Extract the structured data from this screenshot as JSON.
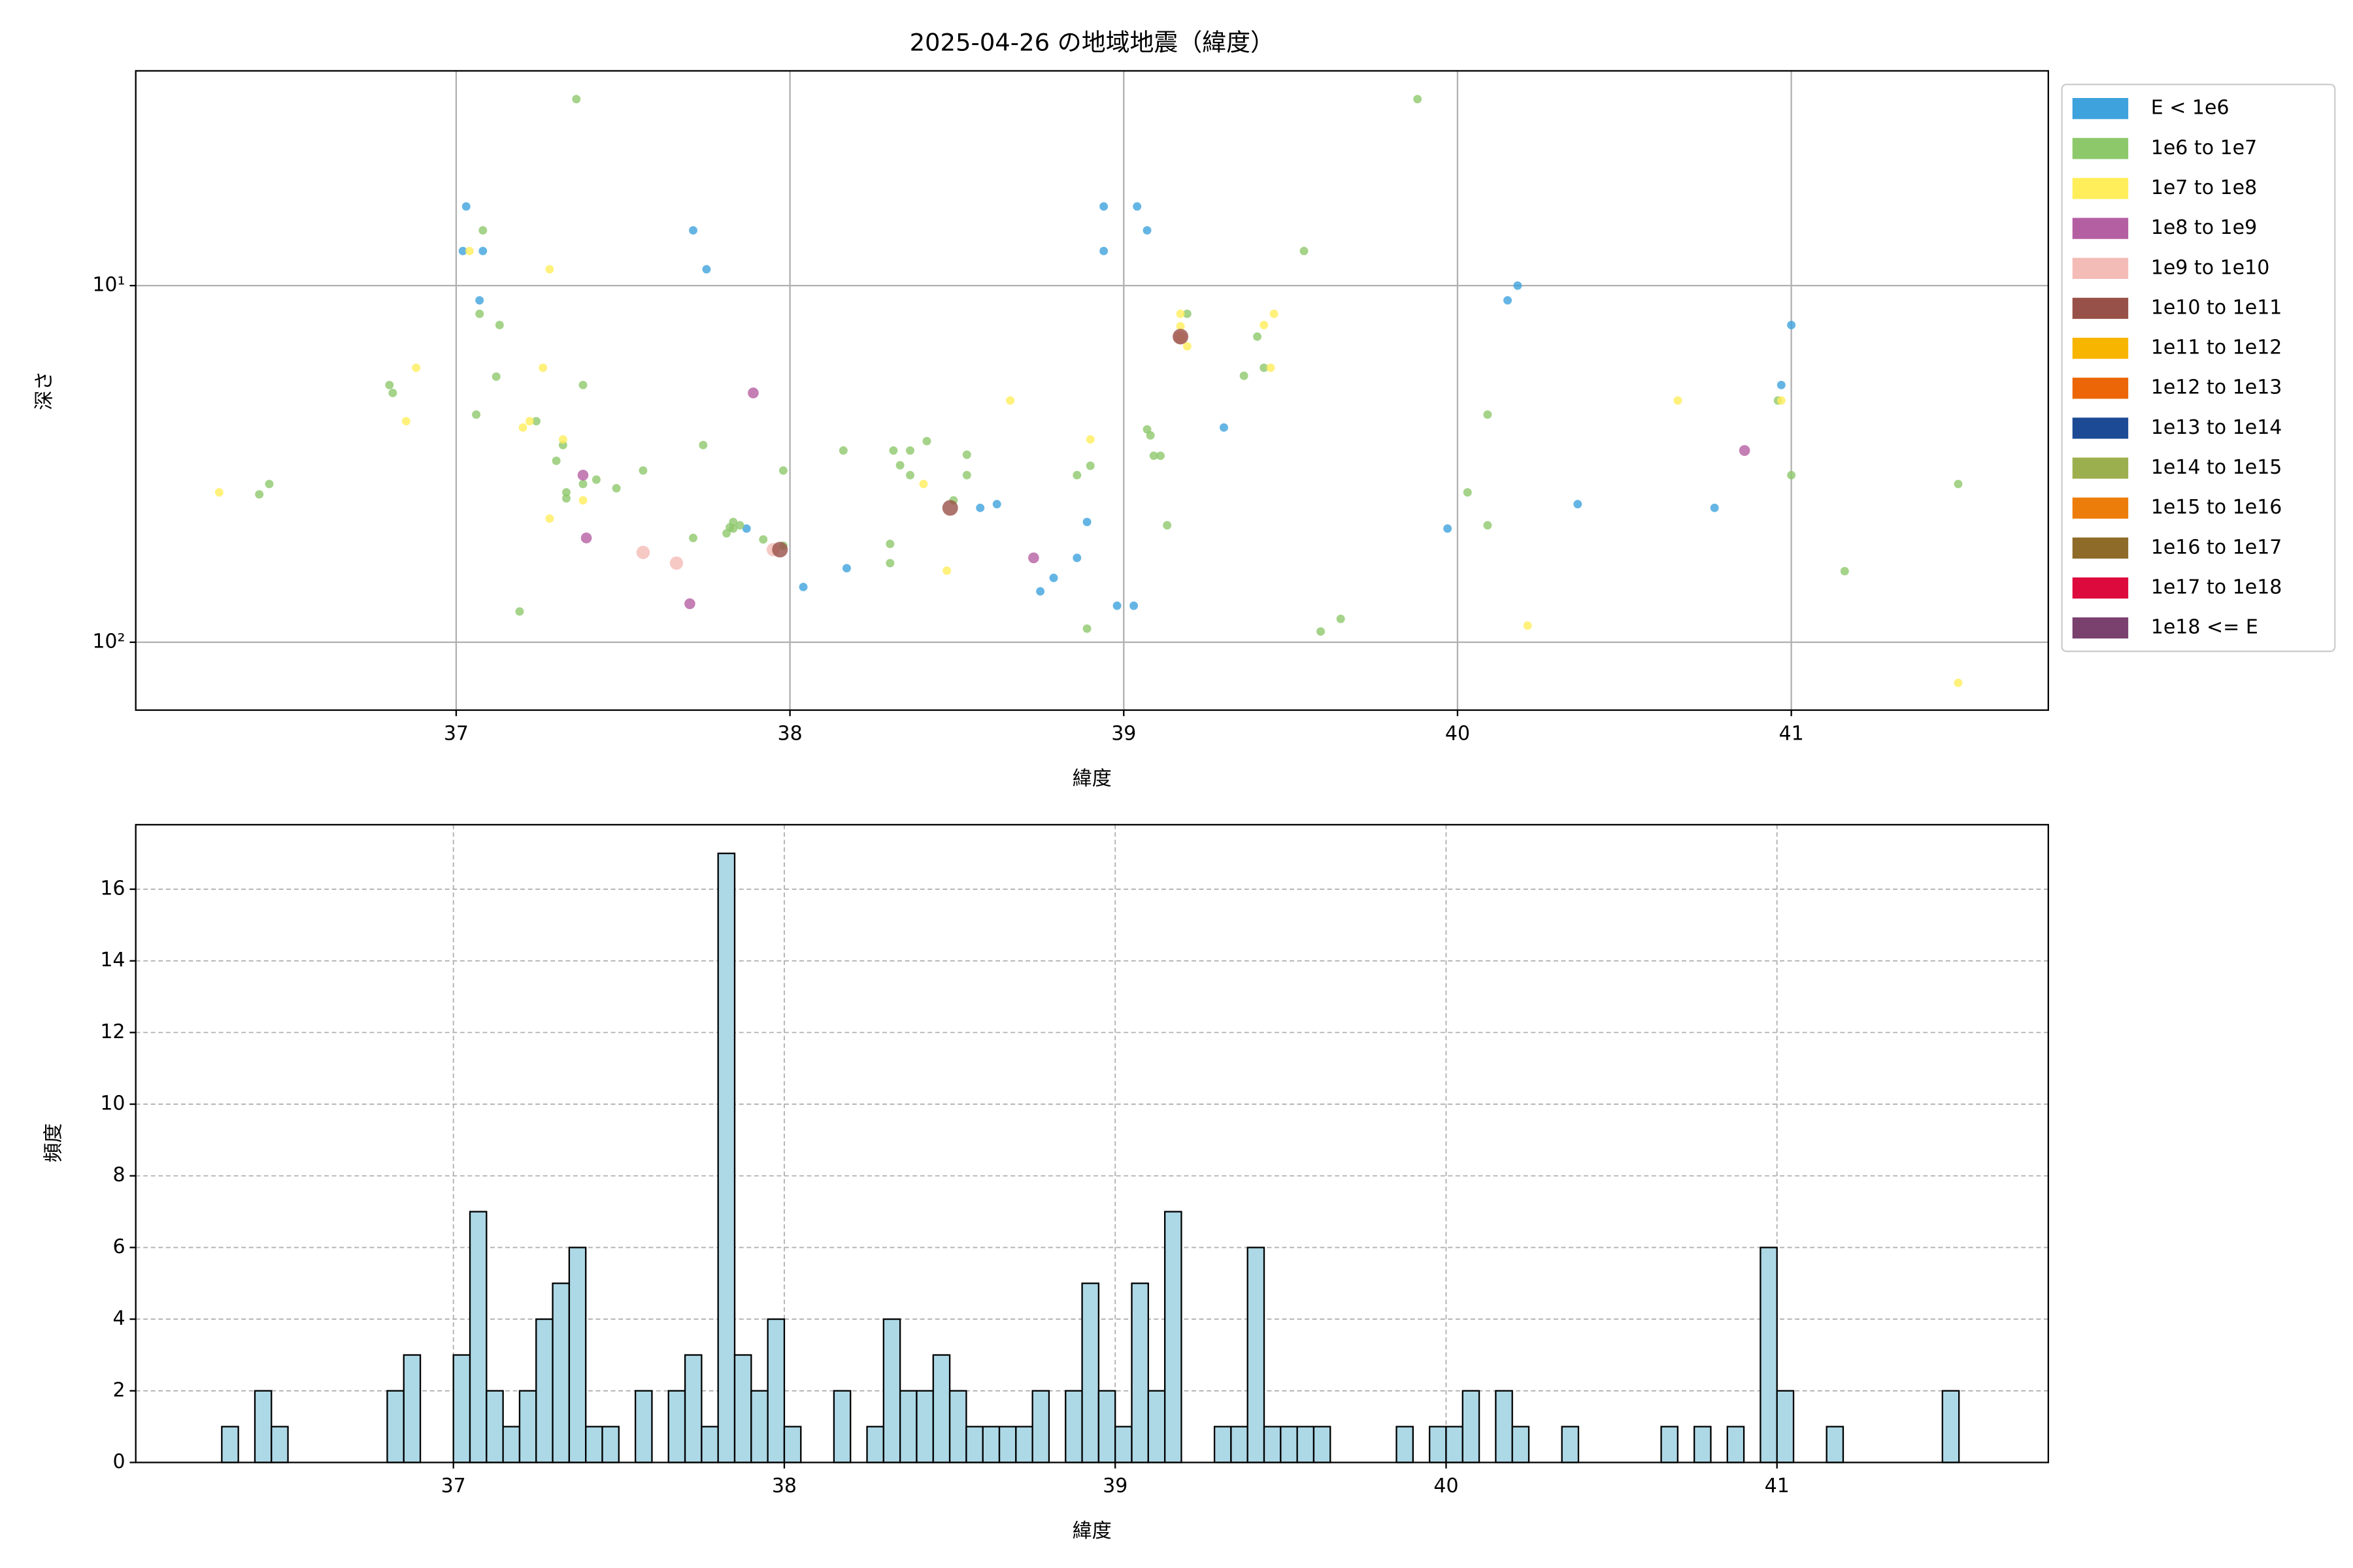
{
  "chart_data": [
    {
      "type": "scatter",
      "title": "2025-04-26 の地域地震（緯度）",
      "x_label": "緯度",
      "y_label": "深さ",
      "xlim": [
        36.04,
        41.77
      ],
      "xticks": [
        37,
        38,
        39,
        40,
        41
      ],
      "ylim": [
        2.5,
        155
      ],
      "y_scale": "log",
      "y_inverted": true,
      "yticks": [
        {
          "value": 10,
          "label": "10¹"
        },
        {
          "value": 100,
          "label": "10²"
        }
      ],
      "grid": true,
      "legend": "outside right",
      "series": [
        {
          "name": "E < 1e6",
          "color": "#3ea2dd",
          "x": [
            37.03,
            37.02,
            37.08,
            37.07,
            37.71,
            37.75,
            37.87,
            38.04,
            38.17,
            38.57,
            38.62,
            38.75,
            38.79,
            38.86,
            38.89,
            38.94,
            38.94,
            38.98,
            39.03,
            39.04,
            39.07,
            39.3,
            39.97,
            40.15,
            40.18,
            40.36,
            40.77,
            40.97,
            41.0
          ],
          "values": [
            6.0,
            8.0,
            8.0,
            11.0,
            7.0,
            9.0,
            48,
            70,
            62,
            42,
            41,
            72,
            66,
            58,
            46,
            6.0,
            8.0,
            79,
            79,
            6.0,
            7.0,
            25,
            48,
            11.0,
            10,
            41,
            42,
            19,
            12.9
          ]
        },
        {
          "name": "1e6 to 1e7",
          "color": "#8dc86b",
          "x": [
            37.36,
            39.88,
            37.08,
            37.07,
            37.13,
            36.8,
            36.81,
            37.06,
            37.12,
            37.24,
            37.38,
            37.32,
            37.3,
            37.42,
            37.38,
            37.33,
            37.33,
            37.48,
            37.56,
            37.74,
            37.71,
            37.19,
            36.41,
            36.44,
            37.82,
            37.83,
            37.83,
            37.85,
            37.81,
            37.92,
            37.98,
            37.98,
            38.16,
            38.31,
            38.36,
            38.41,
            38.33,
            38.36,
            38.53,
            38.53,
            38.49,
            38.3,
            38.3,
            38.89,
            38.86,
            38.9,
            39.07,
            39.08,
            39.09,
            39.11,
            39.13,
            39.19,
            39.36,
            39.4,
            39.42,
            39.54,
            39.59,
            39.65,
            40.03,
            40.09,
            40.09,
            40.96,
            41.0,
            41.16,
            41.5
          ],
          "values": [
            3.0,
            3.0,
            7.0,
            12,
            12.9,
            19,
            20,
            23,
            18,
            24,
            19,
            28,
            31,
            35,
            36,
            38,
            39.5,
            37,
            33,
            28,
            51,
            82,
            38.5,
            36,
            47.6,
            48,
            46,
            47,
            49.5,
            51.5,
            53.6,
            33,
            29,
            29,
            29,
            27.3,
            31.9,
            34,
            29.8,
            34,
            40,
            53,
            60,
            91.6,
            34,
            32,
            25.3,
            26.3,
            30,
            30,
            47,
            12,
            17.9,
            13.9,
            17,
            8.0,
            93.3,
            86,
            38,
            23,
            47,
            21,
            34,
            63.2,
            36
          ]
        },
        {
          "name": "1e7 to 1e8",
          "color": "#ffee5a",
          "x": [
            36.29,
            36.85,
            36.88,
            37.04,
            37.28,
            37.26,
            37.2,
            37.22,
            37.32,
            37.38,
            37.28,
            38.4,
            38.47,
            38.66,
            38.9,
            39.17,
            39.17,
            39.19,
            39.42,
            39.44,
            39.45,
            39.17,
            40.21,
            40.66,
            40.97,
            41.5
          ],
          "values": [
            38,
            24,
            17,
            8,
            9,
            17,
            25,
            24,
            27,
            40,
            45,
            36,
            63,
            21,
            27,
            12,
            13,
            14.8,
            12.9,
            17,
            12,
            14,
            89.8,
            21,
            21,
            130
          ]
        },
        {
          "name": "1e8 to 1e9",
          "color": "#b55fa3",
          "x": [
            37.89,
            37.38,
            37.39,
            37.7,
            38.73,
            40.86
          ],
          "values": [
            20,
            34,
            51,
            78,
            58,
            29
          ]
        },
        {
          "name": "1e9 to 1e10",
          "color": "#f4bcb7",
          "x": [
            37.56,
            37.66,
            37.95,
            39.17
          ],
          "values": [
            56,
            60,
            55,
            14
          ]
        },
        {
          "name": "1e10 to 1e11",
          "color": "#985148",
          "x": [
            38.48,
            37.97,
            39.17
          ],
          "values": [
            42,
            55,
            13.9
          ]
        },
        {
          "name": "1e11 to 1e12",
          "color": "#f7b500",
          "x": [],
          "values": []
        },
        {
          "name": "1e12 to 1e13",
          "color": "#ec6608",
          "x": [],
          "values": []
        },
        {
          "name": "1e13 to 1e14",
          "color": "#1c4a94",
          "x": [],
          "values": []
        },
        {
          "name": "1e14 to 1e15",
          "color": "#9caf4e",
          "x": [],
          "values": []
        },
        {
          "name": "1e15 to 1e16",
          "color": "#ed7d0b",
          "x": [],
          "values": []
        },
        {
          "name": "1e16 to 1e17",
          "color": "#8e6b28",
          "x": [],
          "values": []
        },
        {
          "name": "1e17 to 1e18",
          "color": "#dd0a3e",
          "x": [],
          "values": []
        },
        {
          "name": "1e18 <= E",
          "color": "#7a406e",
          "x": [],
          "values": []
        }
      ]
    },
    {
      "type": "histogram",
      "x_label": "緯度",
      "y_label": "頻度",
      "color": "#add8e6",
      "edgecolor": "#000000",
      "xlim": [
        36.04,
        41.82
      ],
      "xticks": [
        37,
        38,
        39,
        40,
        41
      ],
      "ylim": [
        0,
        17.8
      ],
      "yticks": [
        0,
        2,
        4,
        6,
        8,
        10,
        12,
        14,
        16
      ],
      "grid": true,
      "grid_style": "dashed",
      "bins": [
        36.3,
        36.35,
        36.4,
        36.45,
        36.5,
        36.55,
        36.6,
        36.65,
        36.7,
        36.75,
        36.8,
        36.85,
        36.9,
        36.95,
        37.0,
        37.05,
        37.1,
        37.15,
        37.2,
        37.25,
        37.3,
        37.35,
        37.4,
        37.45,
        37.5,
        37.55,
        37.6,
        37.65,
        37.7,
        37.75,
        37.8,
        37.85,
        37.9,
        37.95,
        38.0,
        38.05,
        38.1,
        38.15,
        38.2,
        38.25,
        38.3,
        38.35,
        38.4,
        38.45,
        38.5,
        38.55,
        38.6,
        38.65,
        38.7,
        38.75,
        38.8,
        38.85,
        38.9,
        38.95,
        39.0,
        39.05,
        39.1,
        39.15,
        39.2,
        39.25,
        39.3,
        39.35,
        39.4,
        39.45,
        39.5,
        39.55,
        39.6,
        39.65,
        39.7,
        39.75,
        39.8,
        39.85,
        39.9,
        39.95,
        40.0,
        40.05,
        40.1,
        40.15,
        40.2,
        40.25,
        40.3,
        40.35,
        40.4,
        40.45,
        40.5,
        40.55,
        40.6,
        40.65,
        40.7,
        40.75,
        40.8,
        40.85,
        40.9,
        40.95,
        41.0,
        41.05,
        41.1,
        41.15,
        41.2,
        41.25,
        41.3,
        41.35,
        41.4,
        41.45,
        41.5,
        41.55
      ],
      "values": [
        1,
        0,
        2,
        1,
        0,
        0,
        0,
        0,
        0,
        0,
        2,
        3,
        0,
        0,
        3,
        7,
        2,
        1,
        2,
        4,
        5,
        6,
        1,
        1,
        0,
        2,
        0,
        2,
        3,
        1,
        17,
        3,
        2,
        4,
        1,
        0,
        0,
        2,
        0,
        1,
        4,
        2,
        2,
        3,
        2,
        1,
        1,
        1,
        1,
        2,
        0,
        2,
        5,
        2,
        1,
        5,
        2,
        7,
        0,
        0,
        1,
        1,
        6,
        1,
        1,
        1,
        1,
        0,
        0,
        0,
        0,
        1,
        0,
        1,
        1,
        2,
        0,
        2,
        1,
        0,
        0,
        1,
        0,
        0,
        0,
        0,
        0,
        1,
        0,
        1,
        0,
        1,
        0,
        6,
        2,
        0,
        0,
        1,
        0,
        0,
        0,
        0,
        0,
        0,
        2
      ]
    }
  ]
}
